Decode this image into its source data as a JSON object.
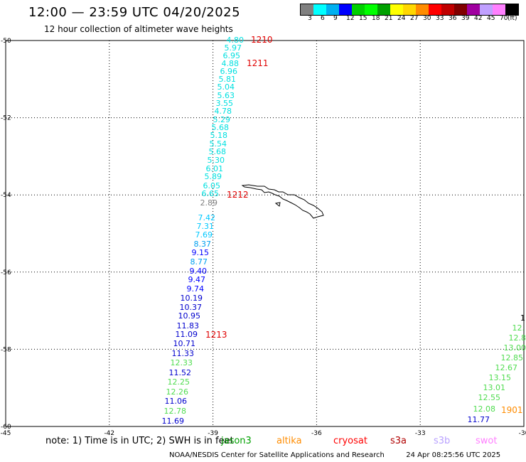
{
  "header": {
    "title": "12:00 — 23:59 UTC 04/20/2025",
    "subtitle": "12 hour collection of altimeter wave heights"
  },
  "color_scale": {
    "colors": [
      "#808080",
      "#00ffff",
      "#00b0f0",
      "#0000ff",
      "#00d000",
      "#00ff00",
      "#00a000",
      "#ffff00",
      "#ffd700",
      "#ff8c00",
      "#ff0000",
      "#c00000",
      "#800000",
      "#a000a0",
      "#c0a0ff",
      "#ff80ff",
      "#000000"
    ],
    "labels": [
      "3",
      "6",
      "9",
      "12",
      "15",
      "18",
      "21",
      "24",
      "27",
      "30",
      "33",
      "36",
      "39",
      "42",
      "45",
      "70",
      "(ft)"
    ]
  },
  "axes": {
    "lat_labels": [
      "-50",
      "-52",
      "-54",
      "-56",
      "-58",
      "-60"
    ],
    "lon_labels": [
      "-45",
      "-42",
      "-39",
      "-36",
      "-33",
      "-30"
    ]
  },
  "wave_labels": {
    "track1": [
      {
        "v": "4.80",
        "c": "#00e0e0"
      },
      {
        "v": "5.97",
        "c": "#00e0e0"
      },
      {
        "v": "6.95",
        "c": "#00e0e0"
      },
      {
        "v": "4.88",
        "c": "#00e0e0"
      },
      {
        "v": "6.96",
        "c": "#00e0e0"
      },
      {
        "v": "5.81",
        "c": "#00e0e0"
      },
      {
        "v": "5.04",
        "c": "#00e0e0"
      },
      {
        "v": "5.63",
        "c": "#00e0e0"
      },
      {
        "v": "3.55",
        "c": "#00e0e0"
      },
      {
        "v": "4.78",
        "c": "#00e0e0"
      },
      {
        "v": "5.29",
        "c": "#00e0e0"
      },
      {
        "v": "5.68",
        "c": "#00e0e0"
      },
      {
        "v": "5.18",
        "c": "#00e0e0"
      },
      {
        "v": "5.54",
        "c": "#00e0e0"
      },
      {
        "v": "5.68",
        "c": "#00e0e0"
      },
      {
        "v": "5.30",
        "c": "#00e0e0"
      },
      {
        "v": "6.01",
        "c": "#00e0e0"
      },
      {
        "v": "5.89",
        "c": "#00e0e0"
      },
      {
        "v": "6.05",
        "c": "#00e0e0"
      },
      {
        "v": "6.65",
        "c": "#00e0e0"
      },
      {
        "v": "2.89",
        "c": "#808080"
      },
      {
        "v": "7.42",
        "c": "#00c8ff"
      },
      {
        "v": "7.31",
        "c": "#00c8ff"
      },
      {
        "v": "7.69",
        "c": "#00c8ff"
      },
      {
        "v": "8.37",
        "c": "#00a0f0"
      },
      {
        "v": "9.15",
        "c": "#0000ff"
      },
      {
        "v": "8.77",
        "c": "#00a0f0"
      },
      {
        "v": "9.40",
        "c": "#0000ff"
      },
      {
        "v": "9.47",
        "c": "#0000ff"
      },
      {
        "v": "9.74",
        "c": "#0000ff"
      },
      {
        "v": "10.19",
        "c": "#0000cd"
      },
      {
        "v": "10.37",
        "c": "#0000cd"
      },
      {
        "v": "10.95",
        "c": "#0000cd"
      },
      {
        "v": "11.83",
        "c": "#0000cd"
      },
      {
        "v": "11.09",
        "c": "#0000cd"
      },
      {
        "v": "10.71",
        "c": "#0000cd"
      },
      {
        "v": "11.33",
        "c": "#0000cd"
      },
      {
        "v": "12.33",
        "c": "#50dc50"
      },
      {
        "v": "11.52",
        "c": "#0000cd"
      },
      {
        "v": "12.25",
        "c": "#50dc50"
      },
      {
        "v": "12.26",
        "c": "#50dc50"
      },
      {
        "v": "11.06",
        "c": "#0000cd"
      },
      {
        "v": "12.78",
        "c": "#50dc50"
      },
      {
        "v": "11.69",
        "c": "#0000cd"
      }
    ],
    "track2": [
      {
        "v": "1",
        "c": "#000000"
      },
      {
        "v": "12.",
        "c": "#50dc50"
      },
      {
        "v": "12.8",
        "c": "#50dc50"
      },
      {
        "v": "13.00",
        "c": "#50dc50"
      },
      {
        "v": "12.85",
        "c": "#50dc50"
      },
      {
        "v": "12.67",
        "c": "#50dc50"
      },
      {
        "v": "13.15",
        "c": "#50dc50"
      },
      {
        "v": "13.01",
        "c": "#50dc50"
      },
      {
        "v": "12.55",
        "c": "#50dc50"
      },
      {
        "v": "12.08",
        "c": "#50dc50"
      },
      {
        "v": "11.77",
        "c": "#0000cd"
      }
    ]
  },
  "pass_labels": [
    {
      "v": "1210",
      "c": "#e00000"
    },
    {
      "v": "1211",
      "c": "#e00000"
    },
    {
      "v": "1212",
      "c": "#e00000"
    },
    {
      "v": "1213",
      "c": "#e00000"
    },
    {
      "v": "1901",
      "c": "#ff8c00"
    }
  ],
  "note": {
    "text": "note: 1) Time is in UTC; 2) SWH is in feet",
    "satellites": [
      {
        "name": "jason3",
        "c": "#00a000"
      },
      {
        "name": "altika",
        "c": "#ff8c00"
      },
      {
        "name": "cryosat",
        "c": "#ff0000"
      },
      {
        "name": "s3a",
        "c": "#b00000"
      },
      {
        "name": "s3b",
        "c": "#b8a0ff"
      },
      {
        "name": "swot",
        "c": "#ff80ff"
      }
    ]
  },
  "footer": {
    "credit": "NOAA/NESDIS Center for Satellite Applications and Research",
    "timestamp": "24 Apr 08:25:56 UTC 2025"
  }
}
